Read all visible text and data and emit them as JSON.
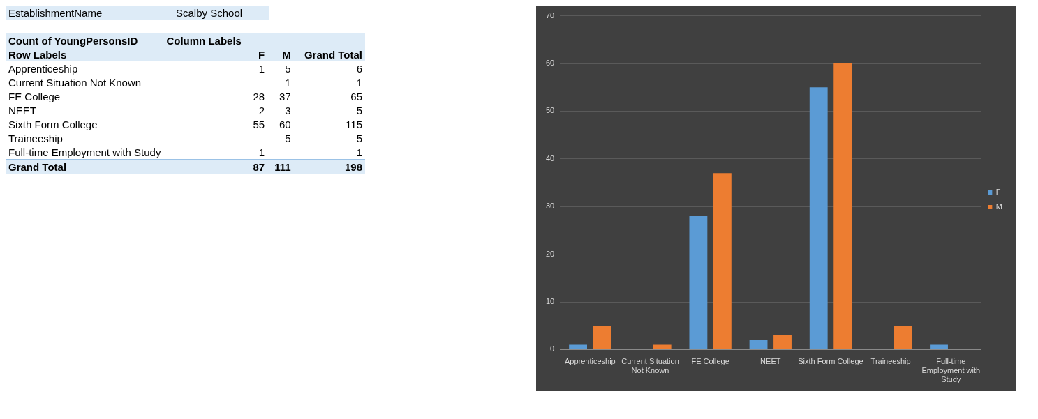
{
  "chart_data": {
    "type": "bar",
    "categories": [
      "Apprenticeship",
      "Current Situation Not Known",
      "FE College",
      "NEET",
      "Sixth Form College",
      "Traineeship",
      "Full-time Employment with Study"
    ],
    "series": [
      {
        "name": "F",
        "color": "#5b9bd5",
        "values": [
          1,
          null,
          28,
          2,
          55,
          null,
          1
        ]
      },
      {
        "name": "M",
        "color": "#ed7d31",
        "values": [
          5,
          1,
          37,
          3,
          60,
          5,
          null
        ]
      }
    ],
    "annotations": [
      "EstablishmentName",
      "Scalby School",
      "Count of YoungPersonsID",
      "Column Labels",
      "Row Labels",
      "Grand Total",
      "1",
      "5",
      "6",
      "1",
      "1",
      "28",
      "37",
      "65",
      "2",
      "3",
      "5",
      "55",
      "60",
      "115",
      "5",
      "5",
      "1",
      "1",
      "Grand Total",
      "87",
      "111",
      "198"
    ],
    "ylim": [
      0,
      70
    ],
    "yticks": [
      0,
      10,
      20,
      30,
      40,
      50,
      60,
      70
    ],
    "grid": "y",
    "legend": "right"
  }
}
